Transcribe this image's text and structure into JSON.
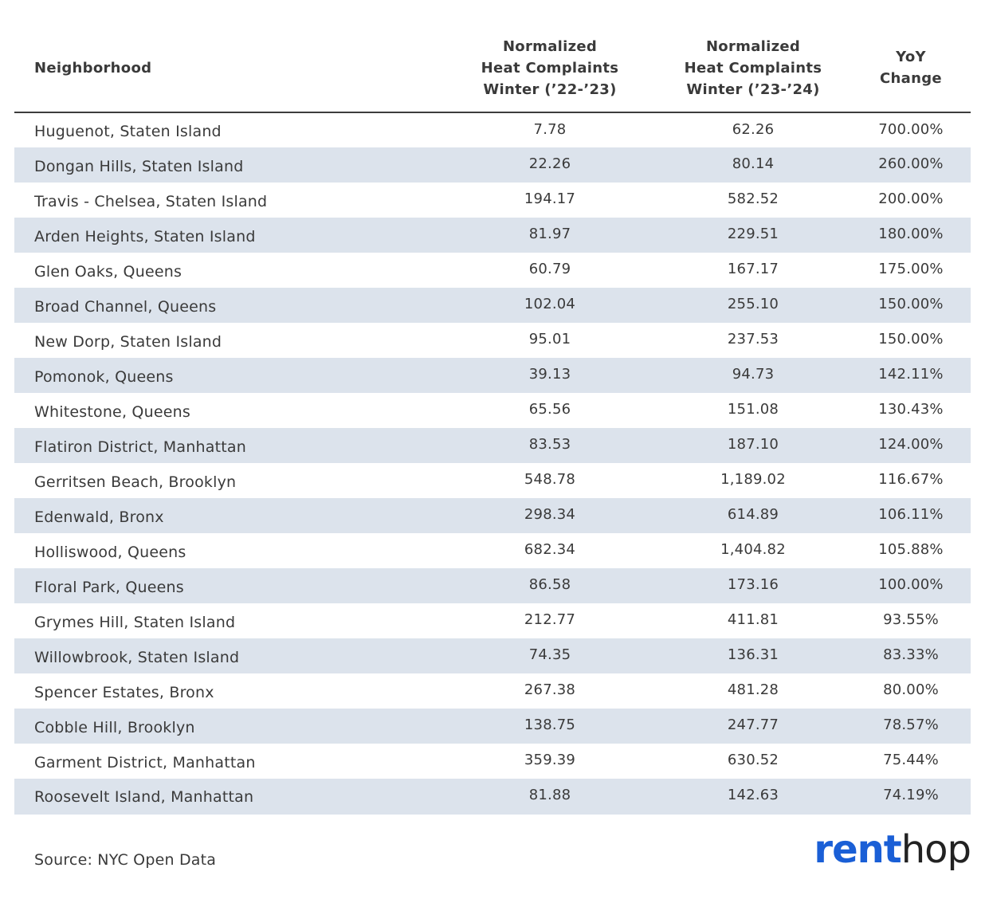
{
  "table": {
    "headers": {
      "neighborhood": "Neighborhood",
      "winter_22_23": [
        "Normalized",
        "Heat Complaints",
        "Winter (’22-’23)"
      ],
      "winter_23_24": [
        "Normalized",
        "Heat Complaints",
        "Winter (’23-’24)"
      ],
      "yoy": [
        "YoY",
        "Change"
      ]
    }
  },
  "chart_data": {
    "type": "table",
    "columns": [
      "Neighborhood",
      "Normalized Heat Complaints Winter (’22-’23)",
      "Normalized Heat Complaints Winter (’23-’24)",
      "YoY Change"
    ],
    "rows": [
      [
        "Huguenot, Staten Island",
        "7.78",
        "62.26",
        "700.00%"
      ],
      [
        "Dongan Hills, Staten Island",
        "22.26",
        "80.14",
        "260.00%"
      ],
      [
        "Travis - Chelsea, Staten Island",
        "194.17",
        "582.52",
        "200.00%"
      ],
      [
        "Arden Heights, Staten Island",
        "81.97",
        "229.51",
        "180.00%"
      ],
      [
        "Glen Oaks, Queens",
        "60.79",
        "167.17",
        "175.00%"
      ],
      [
        "Broad Channel, Queens",
        "102.04",
        "255.10",
        "150.00%"
      ],
      [
        "New Dorp, Staten Island",
        "95.01",
        "237.53",
        "150.00%"
      ],
      [
        "Pomonok, Queens",
        "39.13",
        "94.73",
        "142.11%"
      ],
      [
        "Whitestone, Queens",
        "65.56",
        "151.08",
        "130.43%"
      ],
      [
        "Flatiron District, Manhattan",
        "83.53",
        "187.10",
        "124.00%"
      ],
      [
        "Gerritsen Beach, Brooklyn",
        "548.78",
        "1,189.02",
        "116.67%"
      ],
      [
        "Edenwald, Bronx",
        "298.34",
        "614.89",
        "106.11%"
      ],
      [
        "Holliswood, Queens",
        "682.34",
        "1,404.82",
        "105.88%"
      ],
      [
        "Floral Park, Queens",
        "86.58",
        "173.16",
        "100.00%"
      ],
      [
        "Grymes Hill, Staten Island",
        "212.77",
        "411.81",
        "93.55%"
      ],
      [
        "Willowbrook, Staten Island",
        "74.35",
        "136.31",
        "83.33%"
      ],
      [
        "Spencer Estates, Bronx",
        "267.38",
        "481.28",
        "80.00%"
      ],
      [
        "Cobble Hill, Brooklyn",
        "138.75",
        "247.77",
        "78.57%"
      ],
      [
        "Garment District, Manhattan",
        "359.39",
        "630.52",
        "75.44%"
      ],
      [
        "Roosevelt Island, Manhattan",
        "81.88",
        "142.63",
        "74.19%"
      ]
    ]
  },
  "footer": {
    "source": "Source: NYC Open Data",
    "logo_part1": "rent",
    "logo_part2": "hop"
  },
  "colors": {
    "stripe": "#dce3ec",
    "logo_blue": "#1a5fd6",
    "text": "#3a3a3a"
  }
}
